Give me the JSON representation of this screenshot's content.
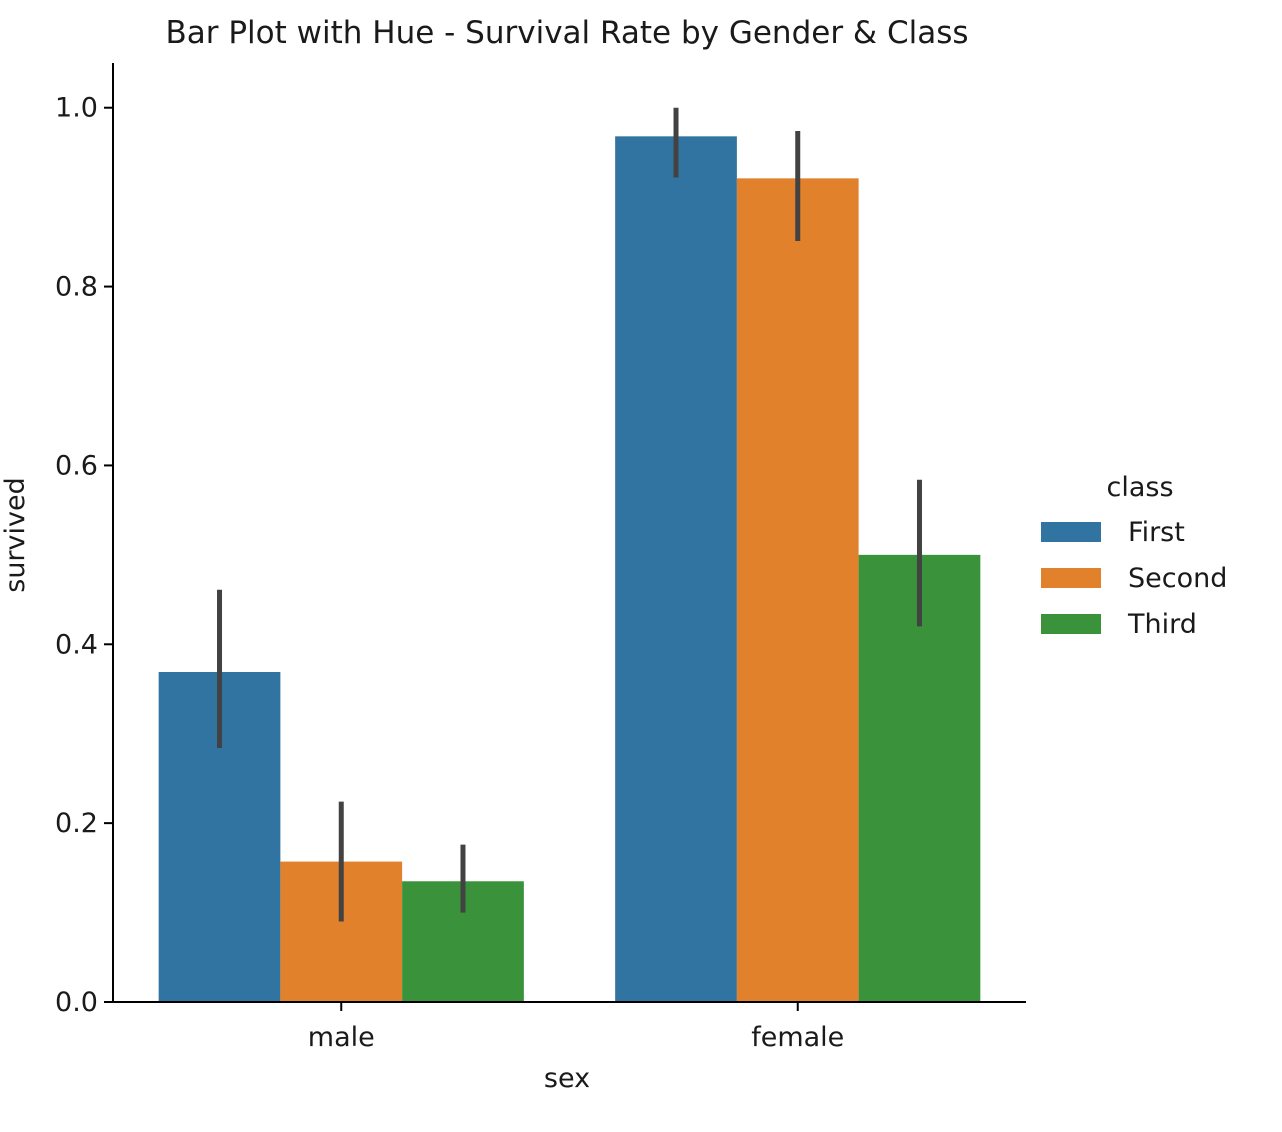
{
  "chart_data": {
    "type": "bar",
    "title": "Bar Plot with Hue - Survival Rate by Gender & Class",
    "xlabel": "sex",
    "ylabel": "survived",
    "categories": [
      "male",
      "female"
    ],
    "ylim": [
      0,
      1.05
    ],
    "yticks": [
      0.0,
      0.2,
      0.4,
      0.6,
      0.8,
      1.0
    ],
    "ytick_labels": [
      "0.0",
      "0.2",
      "0.4",
      "0.6",
      "0.8",
      "1.0"
    ],
    "grid": false,
    "legend": {
      "title": "class",
      "placement": "right"
    },
    "series": [
      {
        "name": "First",
        "color": "#3274a1",
        "values": [
          0.369,
          0.968
        ],
        "ci": [
          [
            0.284,
            0.461
          ],
          [
            0.922,
            1.0
          ]
        ]
      },
      {
        "name": "Second",
        "color": "#e1812c",
        "values": [
          0.157,
          0.921
        ],
        "ci": [
          [
            0.09,
            0.224
          ],
          [
            0.851,
            0.974
          ]
        ]
      },
      {
        "name": "Third",
        "color": "#3a923a",
        "values": [
          0.135,
          0.5
        ],
        "ci": [
          [
            0.1,
            0.176
          ],
          [
            0.42,
            0.584
          ]
        ]
      }
    ],
    "error_bar_color": "#424242"
  }
}
